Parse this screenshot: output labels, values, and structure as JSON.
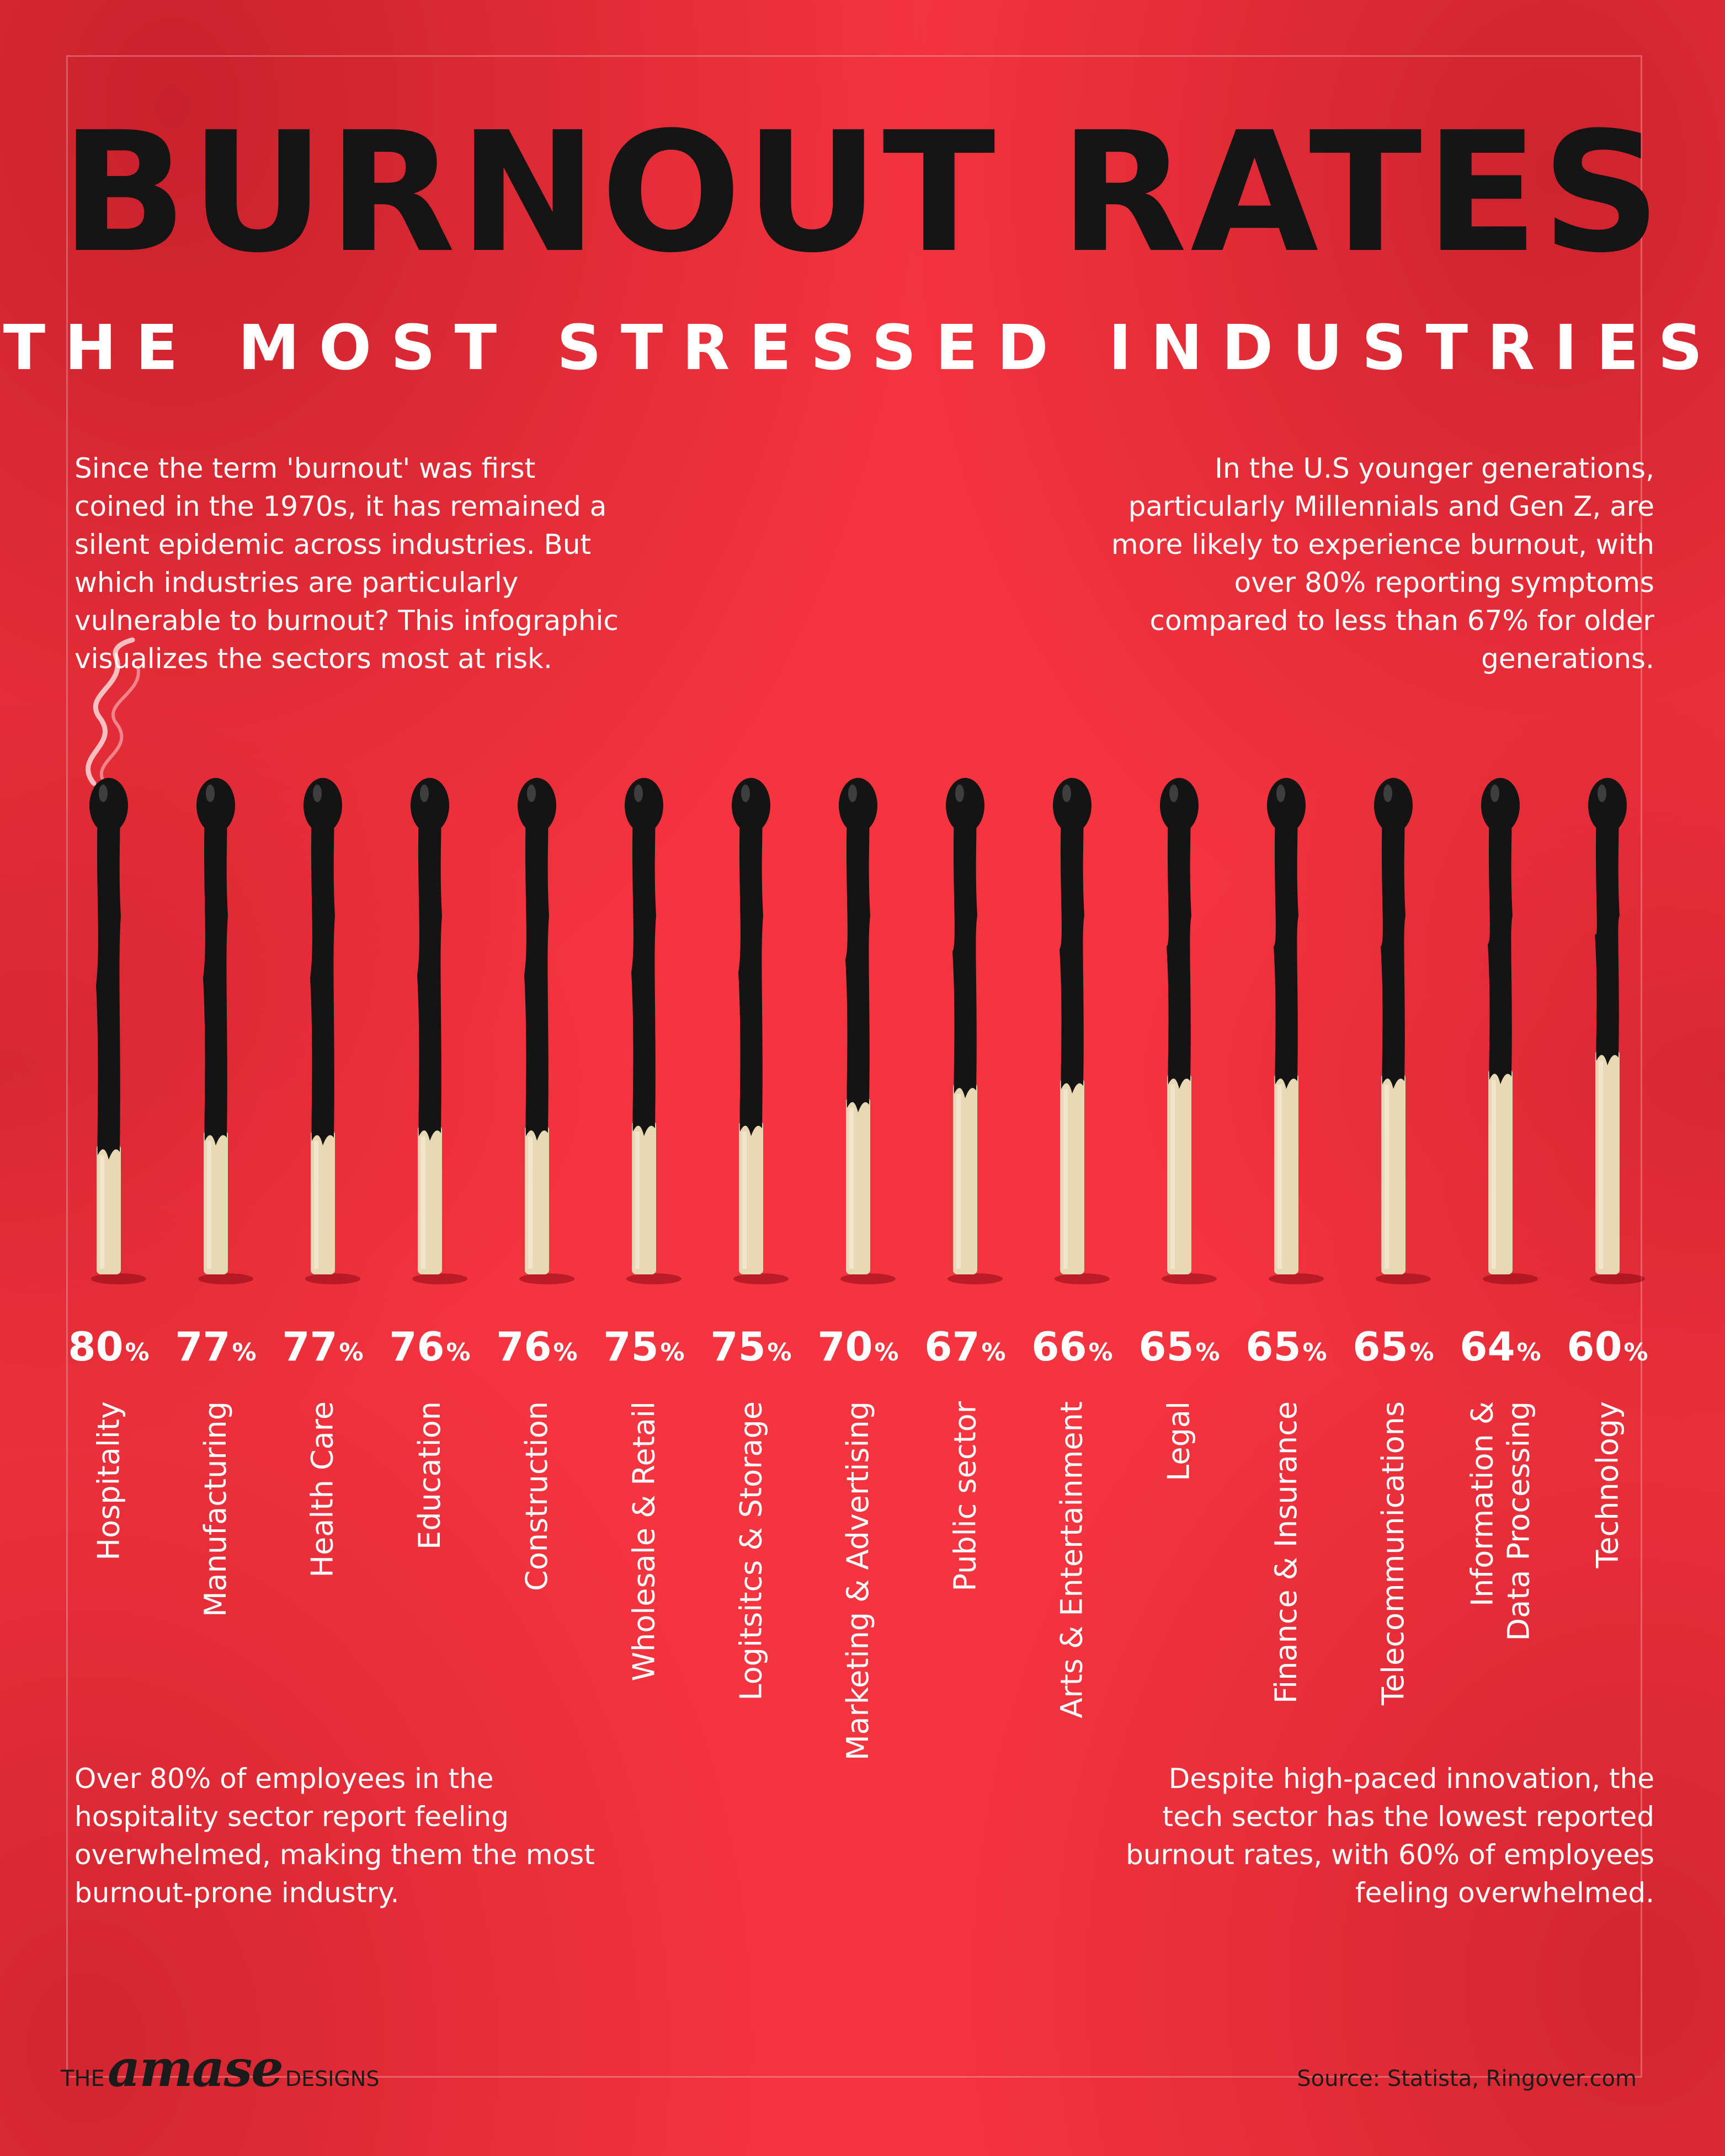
{
  "title": "BURNOUT RATES",
  "subtitle": "THE MOST STRESSED INDUSTRIES",
  "intro_left": [
    "Since the term 'burnout' was first",
    "coined in the 1970s, it has remained a",
    "silent epidemic across industries. But",
    "which industries are particularly",
    "vulnerable to burnout? This infographic",
    "visualizes the sectors most at risk."
  ],
  "intro_right": [
    "In the U.S younger generations,",
    "particularly Millennials and Gen Z, are",
    "more likely to experience burnout, with",
    "over 80% reporting symptoms",
    "compared to less than 67% for older",
    "generations."
  ],
  "outro_left": [
    "Over 80% of employees in the",
    "hospitality sector report feeling",
    "overwhelmed, making them the most",
    "burnout-prone industry."
  ],
  "outro_right": [
    "Despite high-paced innovation, the",
    "tech sector has the lowest reported",
    "burnout rates, with 60% of employees",
    "feeling overwhelmed."
  ],
  "percent_symbol": "%",
  "chart_data": {
    "type": "bar",
    "categories": [
      "Hospitality",
      "Manufacturing",
      "Health Care",
      "Education",
      "Construction",
      "Wholesale & Retail",
      "Logitsitcs & Storage",
      "Marketing & Advertising",
      "Public sector",
      "Arts & Entertainment",
      "Legal",
      "Finance & Insurance",
      "Telecommunications",
      "Information & Data Processing",
      "Technology"
    ],
    "label_lines": [
      [
        "Hospitality"
      ],
      [
        "Manufacturing"
      ],
      [
        "Health Care"
      ],
      [
        "Education"
      ],
      [
        "Construction"
      ],
      [
        "Wholesale & Retail"
      ],
      [
        "Logitsitcs & Storage"
      ],
      [
        "Marketing & Advertising"
      ],
      [
        "Public sector"
      ],
      [
        "Arts & Entertainment"
      ],
      [
        "Legal"
      ],
      [
        "Finance & Insurance"
      ],
      [
        "Telecommunications"
      ],
      [
        "Information &",
        "Data Processing"
      ],
      [
        "Technology"
      ]
    ],
    "values": [
      80,
      77,
      77,
      76,
      76,
      75,
      75,
      70,
      67,
      66,
      65,
      65,
      65,
      64,
      60
    ],
    "unit": "%",
    "ylim": [
      0,
      100
    ]
  },
  "colors": {
    "background": "#f4343f",
    "burnt": "#141414",
    "wood": "#e8d9b4",
    "text": "#ffffff",
    "title": "#151515"
  },
  "footer": {
    "logo_the": "THE",
    "logo_brand": "amase",
    "logo_designs": "DESIGNS",
    "source": "Source: Statista, Ringover.com"
  }
}
